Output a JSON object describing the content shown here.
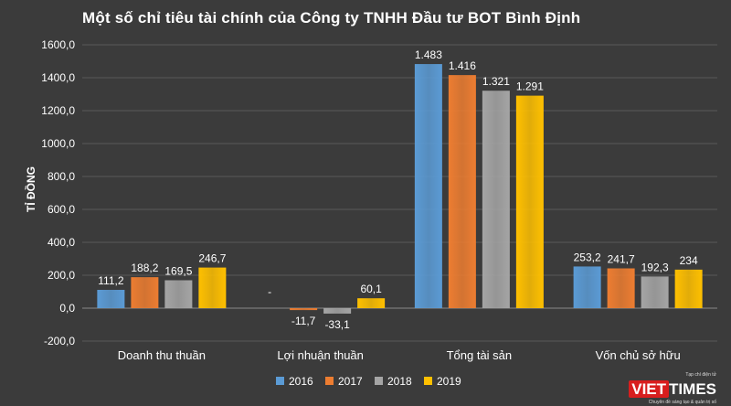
{
  "watermark": {
    "brand_a": "VIET",
    "brand_b": "TIMES",
    "tagline_top": "Tạp chí điện tử",
    "tagline_bottom": "Chuyên đề sáng tạo & quản trị số"
  },
  "chart_data": {
    "type": "bar",
    "title": "Một số chỉ tiêu tài chính của Công ty TNHH Đầu tư BOT Bình Định",
    "ylabel": "TỈ ĐỒNG",
    "xlabel": "",
    "ylim": [
      -200,
      1600
    ],
    "yticks": [
      -200,
      0,
      200,
      400,
      600,
      800,
      1000,
      1200,
      1400,
      1600
    ],
    "ytick_labels": [
      "-200,0",
      "0,0",
      "200,0",
      "400,0",
      "600,0",
      "800,0",
      "1000,0",
      "1200,0",
      "1400,0",
      "1600,0"
    ],
    "categories": [
      "Doanh thu thuần",
      "Lợi nhuận thuần",
      "Tổng tài sản",
      "Vốn chủ sở hữu"
    ],
    "series": [
      {
        "name": "2016",
        "color": "#5b9bd5",
        "values": [
          111.2,
          0,
          1483,
          253.2
        ],
        "labels": [
          "111,2",
          "-",
          "1.483",
          "253,2"
        ]
      },
      {
        "name": "2017",
        "color": "#ed7d31",
        "values": [
          188.2,
          -11.7,
          1416,
          241.7
        ],
        "labels": [
          "188,2",
          "-11,7",
          "1.416",
          "241,7"
        ]
      },
      {
        "name": "2018",
        "color": "#a5a5a5",
        "values": [
          169.5,
          -33.1,
          1321,
          192.3
        ],
        "labels": [
          "169,5",
          "-33,1",
          "1.321",
          "192,3"
        ]
      },
      {
        "name": "2019",
        "color": "#ffc000",
        "values": [
          246.7,
          60.1,
          1291,
          234
        ],
        "labels": [
          "246,7",
          "60,1",
          "1.291",
          "234"
        ]
      }
    ],
    "grid": true,
    "legend_position": "bottom"
  }
}
